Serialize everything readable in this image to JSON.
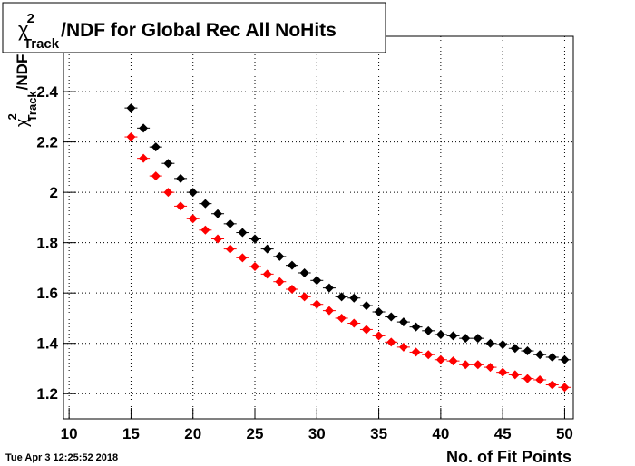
{
  "chart_data": {
    "type": "scatter",
    "title": {
      "symbol": "χ",
      "superscript": "2",
      "subscript": "Track",
      "text": "/NDF for Global Rec All NoHits"
    },
    "y_label": {
      "symbol": "χ",
      "superscript": "2",
      "subscript": "Track",
      "text": "/NDF"
    },
    "x_label": "No. of Fit Points",
    "timestamp": "Tue Apr  3 12:25:52 2018",
    "x": [
      15,
      16,
      17,
      18,
      19,
      20,
      21,
      22,
      23,
      24,
      25,
      26,
      27,
      28,
      29,
      30,
      31,
      32,
      33,
      34,
      35,
      36,
      37,
      38,
      39,
      40,
      41,
      42,
      43,
      44,
      45,
      46,
      47,
      48,
      49,
      50
    ],
    "series": [
      {
        "color": "#000000",
        "values": [
          2.335,
          2.255,
          2.18,
          2.115,
          2.055,
          2.0,
          1.955,
          1.915,
          1.875,
          1.84,
          1.815,
          1.775,
          1.745,
          1.71,
          1.68,
          1.65,
          1.62,
          1.585,
          1.58,
          1.55,
          1.525,
          1.505,
          1.485,
          1.465,
          1.45,
          1.435,
          1.43,
          1.42,
          1.42,
          1.4,
          1.395,
          1.38,
          1.37,
          1.355,
          1.345,
          1.335
        ]
      },
      {
        "color": "#ff0000",
        "values": [
          2.22,
          2.135,
          2.065,
          2.0,
          1.945,
          1.895,
          1.85,
          1.815,
          1.775,
          1.74,
          1.705,
          1.675,
          1.645,
          1.615,
          1.585,
          1.555,
          1.53,
          1.5,
          1.48,
          1.455,
          1.43,
          1.405,
          1.385,
          1.365,
          1.355,
          1.335,
          1.33,
          1.315,
          1.315,
          1.305,
          1.285,
          1.275,
          1.26,
          1.255,
          1.235,
          1.225
        ]
      }
    ],
    "xlim": [
      9.55,
      50.7
    ],
    "ylim": [
      1.1,
      2.62
    ],
    "xticks": [
      10,
      15,
      20,
      25,
      30,
      35,
      40,
      45,
      50
    ],
    "yticks": [
      1.2,
      1.4,
      1.6,
      1.8,
      2,
      2.2,
      2.4
    ],
    "grid": true
  }
}
